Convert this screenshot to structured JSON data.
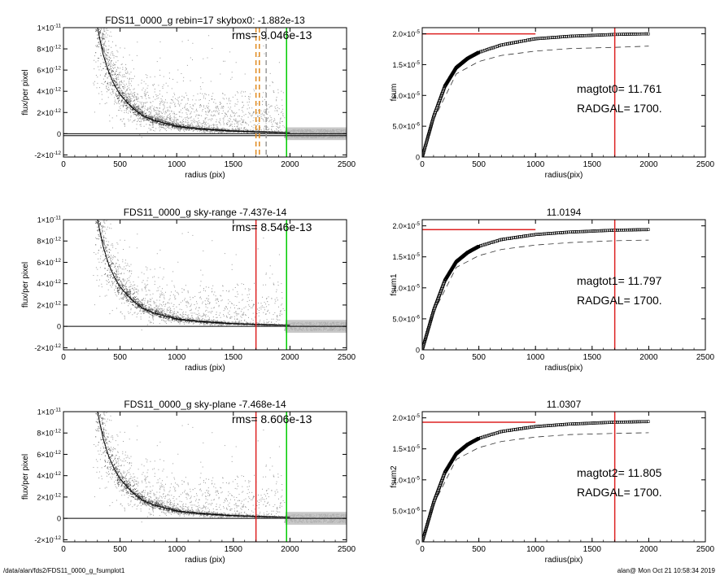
{
  "footer": {
    "left": "/data/alan/fds2/FDS11_0000_g_fsumplot1",
    "right": "alan@  Mon Oct 21 10:58:34 2019"
  },
  "colors": {
    "scatter_gray": "#9a9a9a",
    "scatter_dark": "#444444",
    "red": "#dd2222",
    "green": "#00cc00",
    "orange": "#e08a1e"
  },
  "chart_data": [
    {
      "type": "scatter",
      "title": "FDS11_0000_g rebin=17    skybox0: -1.882e-13",
      "annotation": "rms= 9.046e-13",
      "xlabel": "radius (pix)",
      "ylabel": "flux/per pixel",
      "xlim": [
        0,
        2500
      ],
      "ylim": [
        -2.2e-12,
        1e-11
      ],
      "xticks": [
        0,
        500,
        1000,
        1500,
        2000,
        2500
      ],
      "yticks": [
        {
          "value": -2e-12,
          "mant": "-2×10",
          "exp": "-12"
        },
        {
          "value": 0,
          "mant": "0",
          "exp": ""
        },
        {
          "value": 2e-12,
          "mant": "2×10",
          "exp": "-12"
        },
        {
          "value": 4e-12,
          "mant": "4×10",
          "exp": "-12"
        },
        {
          "value": 6e-12,
          "mant": "6×10",
          "exp": "-12"
        },
        {
          "value": 8e-12,
          "mant": "8×10",
          "exp": "-12"
        },
        {
          "value": 1e-11,
          "mant": "1×10",
          "exp": "-11"
        }
      ],
      "profile": {
        "x": [
          300,
          350,
          400,
          450,
          500,
          600,
          700,
          800,
          1000,
          1200,
          1500,
          1800,
          2000
        ],
        "y": [
          1e-11,
          7.5e-12,
          5.8e-12,
          4.6e-12,
          3.7e-12,
          2.5e-12,
          1.7e-12,
          1.25e-12,
          7e-13,
          4.5e-13,
          2.5e-13,
          1.5e-13,
          1e-13
        ]
      },
      "hlines": [
        {
          "y": 0
        },
        {
          "y": -1.9e-13
        }
      ],
      "vlines": [
        {
          "x": 1700,
          "color": "orange",
          "dash": true
        },
        {
          "x": 1730,
          "color": "orange",
          "dash": true
        },
        {
          "x": 1790,
          "color": "gray",
          "dash": true
        },
        {
          "x": 1970,
          "color": "green"
        }
      ]
    },
    {
      "type": "line",
      "title": "",
      "xlabel": "radius(pix)",
      "ylabel": "fsum",
      "xlim": [
        0,
        2500
      ],
      "ylim": [
        0,
        2.1e-05
      ],
      "xticks": [
        0,
        500,
        1000,
        1500,
        2000,
        2500
      ],
      "yticks": [
        {
          "value": 0,
          "mant": "0",
          "exp": ""
        },
        {
          "value": 5e-06,
          "mant": "5.0×10",
          "exp": "-6"
        },
        {
          "value": 1e-05,
          "mant": "1.0×10",
          "exp": "-5"
        },
        {
          "value": 1.5e-05,
          "mant": "1.5×10",
          "exp": "-5"
        },
        {
          "value": 2e-05,
          "mant": "2.0×10",
          "exp": "-5"
        }
      ],
      "curve": {
        "x": [
          0,
          100,
          200,
          300,
          400,
          500,
          700,
          1000,
          1300,
          1700,
          2000
        ],
        "y": [
          0,
          6.5e-06,
          1.15e-05,
          1.45e-05,
          1.6e-05,
          1.7e-05,
          1.82e-05,
          1.92e-05,
          1.96e-05,
          1.99e-05,
          2e-05
        ]
      },
      "dashed": {
        "x": [
          100,
          300,
          500,
          700,
          1000,
          1300,
          1700,
          2000
        ],
        "y": [
          6e-06,
          1.35e-05,
          1.55e-05,
          1.65e-05,
          1.72e-05,
          1.76e-05,
          1.78e-05,
          1.8e-05
        ]
      },
      "hline_red": {
        "y": 2e-05,
        "x": [
          0,
          1000
        ]
      },
      "vline_red": {
        "x": 1700
      },
      "labels": [
        "magtot0=  11.761",
        "RADGAL=   1700."
      ]
    },
    {
      "type": "scatter",
      "title": "FDS11_0000_g sky-range -7.437e-14",
      "annotation": "rms= 8.546e-13",
      "xlabel": "radius (pix)",
      "ylabel": "flux/per pixel",
      "xlim": [
        0,
        2500
      ],
      "ylim": [
        -2.2e-12,
        1e-11
      ],
      "xticks": [
        0,
        500,
        1000,
        1500,
        2000,
        2500
      ],
      "yticks": [
        {
          "value": -2e-12,
          "mant": "-2×10",
          "exp": "-12"
        },
        {
          "value": 0,
          "mant": "0",
          "exp": ""
        },
        {
          "value": 2e-12,
          "mant": "2×10",
          "exp": "-12"
        },
        {
          "value": 4e-12,
          "mant": "4×10",
          "exp": "-12"
        },
        {
          "value": 6e-12,
          "mant": "6×10",
          "exp": "-12"
        },
        {
          "value": 8e-12,
          "mant": "8×10",
          "exp": "-12"
        },
        {
          "value": 1e-11,
          "mant": "1×10",
          "exp": "-11"
        }
      ],
      "profile": {
        "x": [
          300,
          350,
          400,
          450,
          500,
          600,
          700,
          800,
          1000,
          1200,
          1500,
          1800,
          2000
        ],
        "y": [
          1e-11,
          7.5e-12,
          5.8e-12,
          4.6e-12,
          3.7e-12,
          2.5e-12,
          1.7e-12,
          1.25e-12,
          7e-13,
          4.5e-13,
          2.5e-13,
          1.5e-13,
          1e-13
        ]
      },
      "hlines": [
        {
          "y": 0
        }
      ],
      "vlines": [
        {
          "x": 1700,
          "color": "red"
        },
        {
          "x": 1970,
          "color": "green"
        }
      ]
    },
    {
      "type": "line",
      "title": "11.0194",
      "xlabel": "radius(pix)",
      "ylabel": "fsum1",
      "xlim": [
        0,
        2500
      ],
      "ylim": [
        0,
        2.1e-05
      ],
      "xticks": [
        0,
        500,
        1000,
        1500,
        2000,
        2500
      ],
      "yticks": [
        {
          "value": 0,
          "mant": "0",
          "exp": ""
        },
        {
          "value": 5e-06,
          "mant": "5.0×10",
          "exp": "-6"
        },
        {
          "value": 1e-05,
          "mant": "1.0×10",
          "exp": "-5"
        },
        {
          "value": 1.5e-05,
          "mant": "1.5×10",
          "exp": "-5"
        },
        {
          "value": 2e-05,
          "mant": "2.0×10",
          "exp": "-5"
        }
      ],
      "curve": {
        "x": [
          0,
          100,
          200,
          300,
          400,
          500,
          700,
          1000,
          1300,
          1700,
          2000
        ],
        "y": [
          0,
          6.3e-06,
          1.12e-05,
          1.42e-05,
          1.57e-05,
          1.67e-05,
          1.78e-05,
          1.86e-05,
          1.9e-05,
          1.93e-05,
          1.94e-05
        ]
      },
      "dashed": {
        "x": [
          100,
          300,
          500,
          700,
          1000,
          1300,
          1700,
          2000
        ],
        "y": [
          6e-06,
          1.33e-05,
          1.52e-05,
          1.62e-05,
          1.69e-05,
          1.73e-05,
          1.76e-05,
          1.77e-05
        ]
      },
      "hline_red": {
        "y": 1.94e-05,
        "x": [
          0,
          1000
        ]
      },
      "vline_red": {
        "x": 1700
      },
      "labels": [
        "magtot1=  11.797",
        "RADGAL=   1700."
      ]
    },
    {
      "type": "scatter",
      "title": "FDS11_0000_g sky-plane -7.468e-14",
      "annotation": "rms= 8.606e-13",
      "xlabel": "radius (pix)",
      "ylabel": "flux/per pixel",
      "xlim": [
        0,
        2500
      ],
      "ylim": [
        -2.2e-12,
        1e-11
      ],
      "xticks": [
        0,
        500,
        1000,
        1500,
        2000,
        2500
      ],
      "yticks": [
        {
          "value": -2e-12,
          "mant": "-2×10",
          "exp": "-12"
        },
        {
          "value": 0,
          "mant": "0",
          "exp": ""
        },
        {
          "value": 2e-12,
          "mant": "2×10",
          "exp": "-12"
        },
        {
          "value": 4e-12,
          "mant": "4×10",
          "exp": "-12"
        },
        {
          "value": 6e-12,
          "mant": "6×10",
          "exp": "-12"
        },
        {
          "value": 8e-12,
          "mant": "8×10",
          "exp": "-12"
        },
        {
          "value": 1e-11,
          "mant": "1×10",
          "exp": "-11"
        }
      ],
      "profile": {
        "x": [
          300,
          350,
          400,
          450,
          500,
          600,
          700,
          800,
          1000,
          1200,
          1500,
          1800,
          2000
        ],
        "y": [
          1e-11,
          7.5e-12,
          5.8e-12,
          4.6e-12,
          3.7e-12,
          2.5e-12,
          1.7e-12,
          1.25e-12,
          7e-13,
          4.5e-13,
          2.5e-13,
          1.5e-13,
          1e-13
        ]
      },
      "hlines": [
        {
          "y": 0
        }
      ],
      "vlines": [
        {
          "x": 1700,
          "color": "red"
        },
        {
          "x": 1970,
          "color": "green"
        }
      ]
    },
    {
      "type": "line",
      "title": "11.0307",
      "xlabel": "radius(pix)",
      "ylabel": "fsum2",
      "xlim": [
        0,
        2500
      ],
      "ylim": [
        0,
        2.1e-05
      ],
      "xticks": [
        0,
        500,
        1000,
        1500,
        2000,
        2500
      ],
      "yticks": [
        {
          "value": 0,
          "mant": "0",
          "exp": ""
        },
        {
          "value": 5e-06,
          "mant": "5.0×10",
          "exp": "-6"
        },
        {
          "value": 1e-05,
          "mant": "1.0×10",
          "exp": "-5"
        },
        {
          "value": 1.5e-05,
          "mant": "1.5×10",
          "exp": "-5"
        },
        {
          "value": 2e-05,
          "mant": "2.0×10",
          "exp": "-5"
        }
      ],
      "curve": {
        "x": [
          0,
          100,
          200,
          300,
          400,
          500,
          700,
          1000,
          1300,
          1700,
          2000
        ],
        "y": [
          0,
          6.3e-06,
          1.12e-05,
          1.42e-05,
          1.57e-05,
          1.67e-05,
          1.78e-05,
          1.86e-05,
          1.9e-05,
          1.93e-05,
          1.94e-05
        ]
      },
      "dashed": {
        "x": [
          100,
          300,
          500,
          700,
          1000,
          1300,
          1700,
          2000
        ],
        "y": [
          6e-06,
          1.33e-05,
          1.52e-05,
          1.62e-05,
          1.69e-05,
          1.73e-05,
          1.75e-05,
          1.76e-05
        ]
      },
      "hline_red": {
        "y": 1.93e-05,
        "x": [
          0,
          1000
        ]
      },
      "vline_red": {
        "x": 1700
      },
      "labels": [
        "magtot2=  11.805",
        "RADGAL=   1700."
      ]
    }
  ]
}
